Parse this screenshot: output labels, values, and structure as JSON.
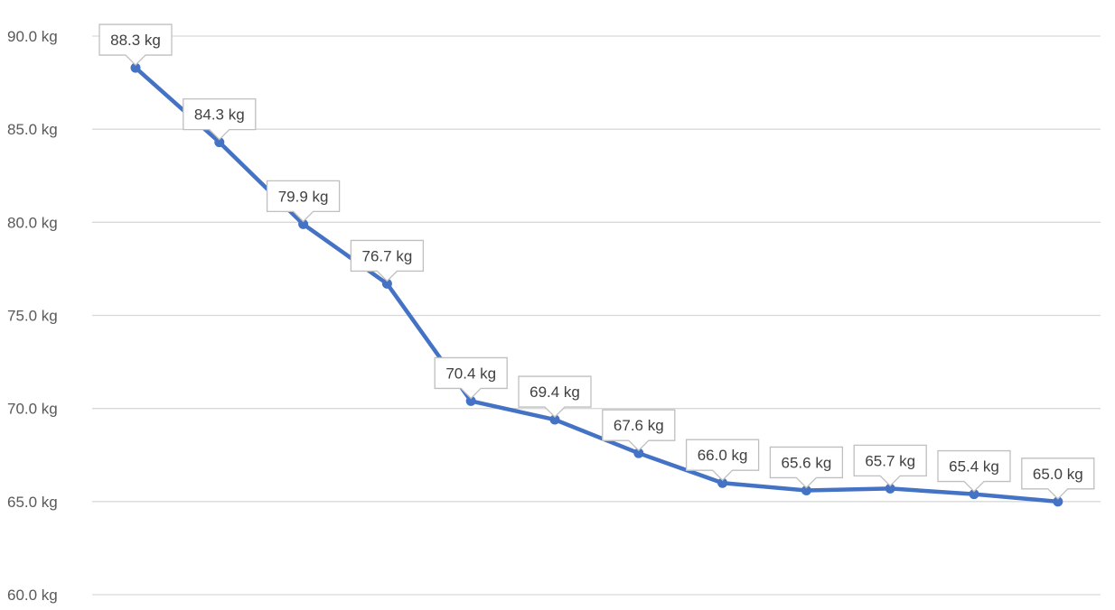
{
  "chart_data": {
    "type": "line",
    "title": "",
    "xlabel": "",
    "ylabel": "",
    "ylim": [
      60,
      90
    ],
    "y_ticks": [
      60,
      65,
      70,
      75,
      80,
      85,
      90
    ],
    "y_tick_labels": [
      "60.0 kg",
      "65.0 kg",
      "70.0 kg",
      "75.0 kg",
      "80.0 kg",
      "85.0 kg",
      "90.0 kg"
    ],
    "grid": true,
    "legend": "none",
    "series": [
      {
        "color": "#4472c4",
        "values": [
          88.3,
          84.3,
          79.9,
          76.7,
          70.4,
          69.4,
          67.6,
          66.0,
          65.6,
          65.7,
          65.4,
          65.0
        ],
        "labels": [
          "88.3 kg",
          "84.3 kg",
          "79.9 kg",
          "76.7 kg",
          "70.4 kg",
          "69.4 kg",
          "67.6 kg",
          "66.0 kg",
          "65.6 kg",
          "65.7 kg",
          "65.4 kg",
          "65.0 kg"
        ]
      }
    ]
  }
}
